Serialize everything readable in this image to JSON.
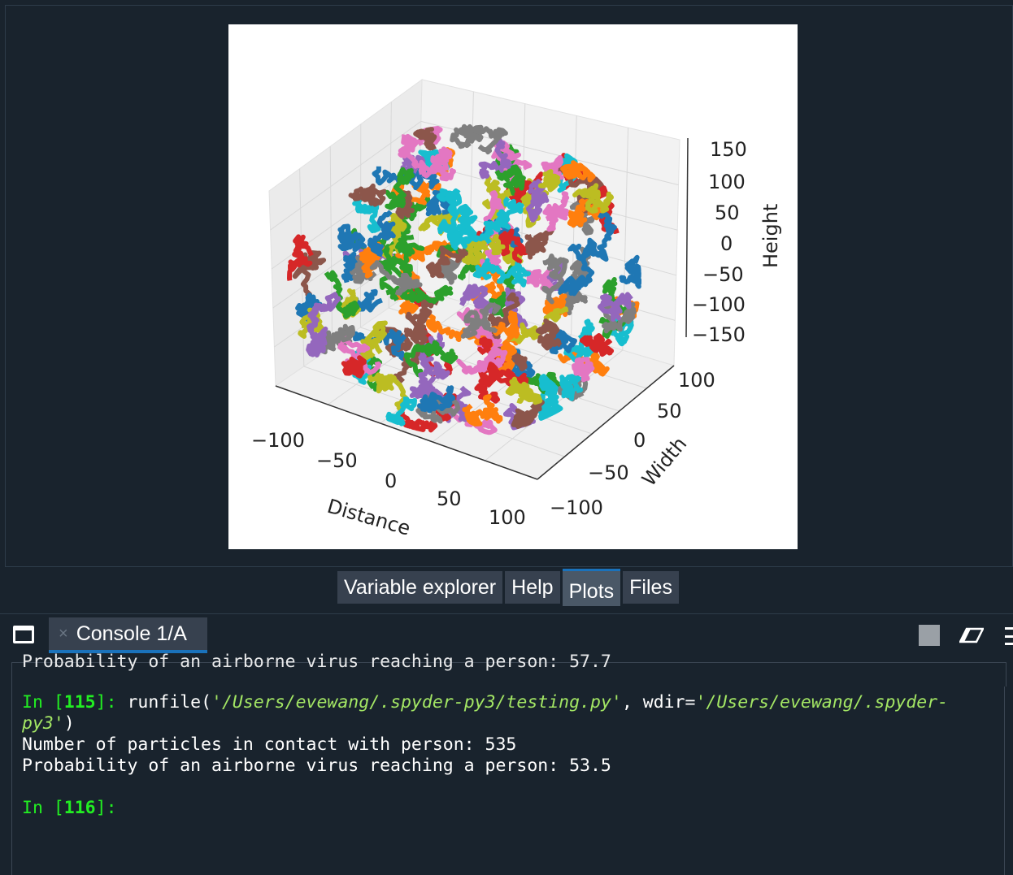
{
  "plot": {
    "axes": {
      "x_label": "Distance",
      "y_label": "Width",
      "z_label": "Height",
      "x_ticks": [
        "−100",
        "−50",
        "0",
        "50",
        "100"
      ],
      "y_ticks": [
        "−100",
        "−50",
        "0",
        "50",
        "100"
      ],
      "z_ticks": [
        "150",
        "100",
        "50",
        "0",
        "−50",
        "−100",
        "−150"
      ]
    },
    "series_colors": [
      "#1f77b4",
      "#ff7f0e",
      "#2ca02c",
      "#d62728",
      "#9467bd",
      "#8c564b",
      "#e377c2",
      "#7f7f7f",
      "#bcbd22",
      "#17becf"
    ]
  },
  "pane_tabs": [
    {
      "label": "Variable explorer",
      "active": false
    },
    {
      "label": "Help",
      "active": false
    },
    {
      "label": "Plots",
      "active": true
    },
    {
      "label": "Files",
      "active": false
    }
  ],
  "console": {
    "tab_label": "Console 1/A",
    "tab_close": "×",
    "cut_line": "Probability of an airborne virus reaching a person: 57.7",
    "prompt1_in": "In [",
    "prompt1_num": "115",
    "prompt1_end": "]: ",
    "cmd_a": "runfile(",
    "cmd_str1": "'/Users/evewang/.spyder-py3/testing.py'",
    "cmd_b": ", wdir=",
    "cmd_str2a": "'/Users/evewang/.spyder-",
    "cmd_str2b": "py3'",
    "cmd_c": ")",
    "out1": "Number of particles in contact with person: 535",
    "out2": "Probability of an airborne virus reaching a person: 53.5",
    "prompt2_in": "In [",
    "prompt2_num": "116",
    "prompt2_end": "]:"
  }
}
